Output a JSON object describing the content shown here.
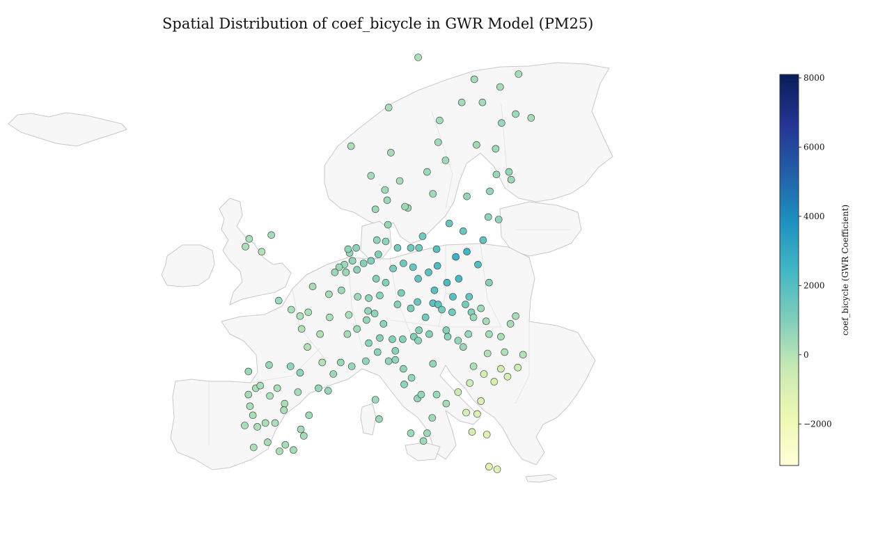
{
  "title": "Spatial Distribution of coef_bicycle in GWR Model (PM25)",
  "colorbar": {
    "label": "coef_bicycle (GWR Coefficient)",
    "min": -3200,
    "max": 8100,
    "ticks": [
      8000,
      6000,
      4000,
      2000,
      0,
      -2000
    ],
    "tick_labels": [
      "8000",
      "6000",
      "4000",
      "2000",
      "0",
      "−2000"
    ],
    "colors": [
      "#ffffd9",
      "#edf8b1",
      "#c7e9b4",
      "#7fcdbb",
      "#41b6c4",
      "#1d91c0",
      "#225ea8",
      "#253494",
      "#081d58"
    ]
  },
  "map_style": {
    "land_fill": "#f7f7f7",
    "border_color": "#c8c8c8",
    "point_edge": "#333333"
  },
  "chart_data": {
    "type": "scatter",
    "description_units": "longitude, latitude, coefficient value",
    "points": [
      [
        -5.5,
        53.5,
        300
      ],
      [
        -8.5,
        53.2,
        200
      ],
      [
        -9.0,
        52.6,
        150
      ],
      [
        -6.8,
        52.2,
        0
      ],
      [
        4.4,
        51.2,
        500
      ],
      [
        5.1,
        52.1,
        600
      ],
      [
        3.7,
        51.0,
        500
      ],
      [
        4.9,
        52.4,
        700
      ],
      [
        6.0,
        52.5,
        800
      ],
      [
        5.5,
        51.5,
        700
      ],
      [
        4.6,
        50.6,
        500
      ],
      [
        6.1,
        50.8,
        800
      ],
      [
        7.0,
        51.3,
        900
      ],
      [
        8.0,
        51.5,
        1000
      ],
      [
        9.0,
        52.0,
        1000
      ],
      [
        10.0,
        53.0,
        800
      ],
      [
        8.8,
        53.1,
        700
      ],
      [
        10.3,
        54.3,
        600
      ],
      [
        11.6,
        52.5,
        1200
      ],
      [
        13.4,
        52.5,
        1300
      ],
      [
        12.4,
        51.3,
        1400
      ],
      [
        13.7,
        51.0,
        1500
      ],
      [
        11.0,
        50.9,
        1100
      ],
      [
        10.0,
        49.8,
        900
      ],
      [
        9.2,
        48.8,
        800
      ],
      [
        11.6,
        48.1,
        900
      ],
      [
        12.1,
        49.0,
        1100
      ],
      [
        8.7,
        50.1,
        900
      ],
      [
        7.6,
        47.6,
        600
      ],
      [
        8.5,
        47.4,
        700
      ],
      [
        7.4,
        46.9,
        600
      ],
      [
        6.1,
        46.2,
        400
      ],
      [
        9.7,
        46.6,
        800
      ],
      [
        14.3,
        48.3,
        1500
      ],
      [
        16.4,
        48.2,
        1800
      ],
      [
        15.4,
        47.1,
        1300
      ],
      [
        14.5,
        46.1,
        900
      ],
      [
        13.4,
        47.8,
        1100
      ],
      [
        14.4,
        50.1,
        1700
      ],
      [
        16.6,
        49.2,
        1900
      ],
      [
        18.3,
        49.8,
        2200
      ],
      [
        15.8,
        50.6,
        1800
      ],
      [
        21.0,
        52.2,
        2500
      ],
      [
        19.9,
        50.1,
        2300
      ],
      [
        17.0,
        51.1,
        2100
      ],
      [
        16.9,
        52.4,
        1900
      ],
      [
        18.6,
        54.4,
        1500
      ],
      [
        19.5,
        51.8,
        2600
      ],
      [
        22.5,
        51.2,
        2000
      ],
      [
        23.2,
        53.1,
        1700
      ],
      [
        20.5,
        53.8,
        1500
      ],
      [
        15.0,
        53.4,
        1300
      ],
      [
        14.5,
        52.5,
        1300
      ],
      [
        17.1,
        48.1,
        1700
      ],
      [
        19.1,
        48.7,
        1900
      ],
      [
        21.3,
        48.7,
        1600
      ],
      [
        19.0,
        47.5,
        1300
      ],
      [
        20.8,
        48.1,
        1200
      ],
      [
        18.2,
        46.1,
        900
      ],
      [
        21.6,
        47.5,
        900
      ],
      [
        17.6,
        47.7,
        1300
      ],
      [
        24.0,
        49.8,
        900
      ],
      [
        25.3,
        54.7,
        700
      ],
      [
        23.9,
        54.9,
        700
      ],
      [
        24.1,
        56.9,
        600
      ],
      [
        25.0,
        58.2,
        500
      ],
      [
        27.0,
        57.8,
        500
      ],
      [
        21.0,
        56.5,
        600
      ],
      [
        26.7,
        58.4,
        600
      ],
      [
        24.9,
        60.2,
        400
      ],
      [
        25.7,
        62.2,
        500
      ],
      [
        27.6,
        62.9,
        400
      ],
      [
        22.3,
        60.5,
        400
      ],
      [
        29.7,
        62.6,
        300
      ],
      [
        25.5,
        65.0,
        300
      ],
      [
        28.0,
        66.0,
        300
      ],
      [
        23.1,
        63.8,
        300
      ],
      [
        18.1,
        59.3,
        400
      ],
      [
        16.4,
        56.7,
        400
      ],
      [
        13.0,
        55.6,
        400
      ],
      [
        11.9,
        57.7,
        300
      ],
      [
        15.6,
        58.4,
        400
      ],
      [
        17.1,
        60.7,
        400
      ],
      [
        20.3,
        63.8,
        300
      ],
      [
        17.3,
        62.4,
        300
      ],
      [
        22.0,
        65.6,
        300
      ],
      [
        10.7,
        59.9,
        300
      ],
      [
        5.3,
        60.4,
        200
      ],
      [
        8.0,
        58.1,
        300
      ],
      [
        10.4,
        63.4,
        200
      ],
      [
        14.4,
        67.3,
        200
      ],
      [
        12.6,
        55.7,
        500
      ],
      [
        10.2,
        56.2,
        500
      ],
      [
        9.9,
        57.0,
        400
      ],
      [
        8.6,
        55.5,
        500
      ],
      [
        2.3,
        48.9,
        300
      ],
      [
        4.8,
        45.8,
        300
      ],
      [
        5.4,
        43.3,
        600
      ],
      [
        7.3,
        43.7,
        700
      ],
      [
        1.4,
        43.6,
        0
      ],
      [
        -0.6,
        44.8,
        100
      ],
      [
        -1.6,
        47.2,
        100
      ],
      [
        -4.5,
        48.4,
        400
      ],
      [
        3.1,
        50.6,
        500
      ],
      [
        5.0,
        47.3,
        200
      ],
      [
        7.7,
        48.6,
        700
      ],
      [
        6.2,
        48.7,
        500
      ],
      [
        0.1,
        49.5,
        300
      ],
      [
        2.9,
        42.7,
        500
      ],
      [
        1.1,
        45.8,
        100
      ],
      [
        3.9,
        43.6,
        500
      ],
      [
        -1.4,
        46.2,
        100
      ],
      [
        -0.5,
        47.5,
        150
      ],
      [
        2.4,
        47.1,
        200
      ],
      [
        4.0,
        49.2,
        400
      ],
      [
        -2.8,
        47.7,
        250
      ],
      [
        -3.7,
        40.4,
        200
      ],
      [
        -8.6,
        42.9,
        500
      ],
      [
        -5.8,
        43.4,
        600
      ],
      [
        -2.9,
        43.3,
        700
      ],
      [
        -1.6,
        42.8,
        700
      ],
      [
        0.9,
        41.6,
        600
      ],
      [
        2.2,
        41.4,
        600
      ],
      [
        -0.4,
        39.5,
        400
      ],
      [
        -1.1,
        37.9,
        300
      ],
      [
        -4.4,
        36.7,
        200
      ],
      [
        -6.0,
        37.4,
        300
      ],
      [
        -6.3,
        38.9,
        200
      ],
      [
        -2.5,
        36.8,
        300
      ],
      [
        -3.6,
        37.2,
        300
      ],
      [
        -4.7,
        41.6,
        200
      ],
      [
        -5.7,
        41.0,
        200
      ],
      [
        -3.8,
        39.9,
        200
      ],
      [
        -1.9,
        41.3,
        300
      ],
      [
        -1.5,
        38.4,
        300
      ],
      [
        -5.0,
        38.9,
        150
      ],
      [
        -9.1,
        38.7,
        200
      ],
      [
        -8.6,
        41.1,
        300
      ],
      [
        -8.4,
        40.2,
        200
      ],
      [
        -7.9,
        37.0,
        200
      ],
      [
        -7.4,
        38.6,
        150
      ],
      [
        -8.0,
        39.5,
        200
      ],
      [
        -7.6,
        41.6,
        200
      ],
      [
        -7.0,
        41.8,
        250
      ],
      [
        12.5,
        41.9,
        700
      ],
      [
        9.2,
        45.5,
        900
      ],
      [
        7.7,
        45.1,
        800
      ],
      [
        11.3,
        43.8,
        700
      ],
      [
        11.3,
        44.5,
        800
      ],
      [
        12.3,
        45.4,
        900
      ],
      [
        8.9,
        44.4,
        800
      ],
      [
        14.3,
        40.8,
        600
      ],
      [
        16.9,
        41.1,
        500
      ],
      [
        15.6,
        38.1,
        400
      ],
      [
        13.4,
        38.1,
        400
      ],
      [
        15.1,
        37.5,
        400
      ],
      [
        9.1,
        39.2,
        500
      ],
      [
        8.6,
        40.7,
        500
      ],
      [
        13.8,
        45.6,
        1000
      ],
      [
        10.9,
        45.4,
        900
      ],
      [
        12.4,
        43.1,
        700
      ],
      [
        13.5,
        42.4,
        600
      ],
      [
        16.3,
        39.3,
        400
      ],
      [
        18.2,
        40.4,
        300
      ],
      [
        14.8,
        41.1,
        600
      ],
      [
        10.4,
        43.7,
        700
      ],
      [
        15.9,
        45.8,
        900
      ],
      [
        14.4,
        45.3,
        800
      ],
      [
        16.4,
        43.5,
        600
      ],
      [
        18.4,
        45.6,
        800
      ],
      [
        20.5,
        44.8,
        500
      ],
      [
        21.9,
        43.3,
        200
      ],
      [
        19.8,
        45.3,
        600
      ],
      [
        21.2,
        45.8,
        500
      ],
      [
        26.1,
        44.4,
        100
      ],
      [
        27.6,
        47.2,
        300
      ],
      [
        23.6,
        46.8,
        300
      ],
      [
        21.9,
        47.1,
        500
      ],
      [
        24.0,
        45.8,
        300
      ],
      [
        28.6,
        44.2,
        0
      ],
      [
        25.6,
        45.6,
        200
      ],
      [
        26.9,
        46.6,
        300
      ],
      [
        23.8,
        44.3,
        100
      ],
      [
        22.9,
        47.8,
        400
      ],
      [
        23.3,
        42.7,
        -800
      ],
      [
        24.7,
        42.1,
        -900
      ],
      [
        27.9,
        43.2,
        -600
      ],
      [
        25.6,
        43.1,
        -700
      ],
      [
        26.5,
        42.5,
        -800
      ],
      [
        23.7,
        38.0,
        -1200
      ],
      [
        22.9,
        40.6,
        -1100
      ],
      [
        21.7,
        38.2,
        -1000
      ],
      [
        22.4,
        39.6,
        -1100
      ],
      [
        25.1,
        35.3,
        -1300
      ],
      [
        24.0,
        35.5,
        -1300
      ],
      [
        20.9,
        39.7,
        -900
      ],
      [
        21.4,
        42.0,
        -600
      ],
      [
        19.8,
        41.3,
        -500
      ]
    ]
  }
}
